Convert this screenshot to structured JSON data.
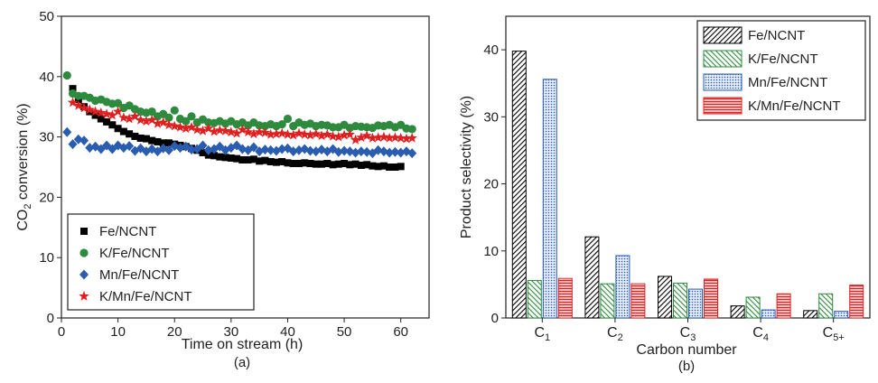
{
  "chart_data": [
    {
      "type": "scatter",
      "panel_label": "(a)",
      "xlabel": "Time on stream (h)",
      "ylabel": {
        "main": "CO",
        "sub": "2",
        "rest": " conversion (%)"
      },
      "xlim": [
        0,
        65
      ],
      "ylim": [
        0,
        50
      ],
      "xticks": [
        "0",
        "10",
        "20",
        "30",
        "40",
        "50",
        "60"
      ],
      "yticks": [
        "0",
        "10",
        "20",
        "30",
        "40",
        "50"
      ],
      "legend_position": "bottom-left",
      "series": [
        {
          "name": "Fe/NCNT",
          "marker": "square",
          "color": "#000000",
          "points": [
            [
              2,
              38.0
            ],
            [
              3,
              36.2
            ],
            [
              4,
              35.0
            ],
            [
              5,
              34.2
            ],
            [
              6,
              33.6
            ],
            [
              7,
              33.0
            ],
            [
              8,
              32.5
            ],
            [
              9,
              32.0
            ],
            [
              10,
              31.4
            ],
            [
              11,
              30.9
            ],
            [
              12,
              30.5
            ],
            [
              13,
              30.1
            ],
            [
              14,
              29.8
            ],
            [
              15,
              29.7
            ],
            [
              16,
              29.4
            ],
            [
              17,
              29.2
            ],
            [
              18,
              29.0
            ],
            [
              19,
              29.0
            ],
            [
              20,
              28.8
            ],
            [
              21,
              28.6
            ],
            [
              22,
              28.4
            ],
            [
              23,
              28.1
            ],
            [
              24,
              27.8
            ],
            [
              25,
              27.4
            ],
            [
              26,
              27.0
            ],
            [
              27,
              26.9
            ],
            [
              28,
              26.7
            ],
            [
              29,
              26.6
            ],
            [
              30,
              26.5
            ],
            [
              31,
              26.4
            ],
            [
              32,
              26.2
            ],
            [
              33,
              26.2
            ],
            [
              34,
              26.3
            ],
            [
              35,
              26.0
            ],
            [
              36,
              26.1
            ],
            [
              37,
              25.9
            ],
            [
              38,
              25.8
            ],
            [
              39,
              25.9
            ],
            [
              40,
              25.7
            ],
            [
              41,
              25.6
            ],
            [
              42,
              25.6
            ],
            [
              43,
              25.7
            ],
            [
              44,
              25.6
            ],
            [
              45,
              25.5
            ],
            [
              46,
              25.5
            ],
            [
              47,
              25.6
            ],
            [
              48,
              25.4
            ],
            [
              49,
              25.5
            ],
            [
              50,
              25.6
            ],
            [
              51,
              25.4
            ],
            [
              52,
              25.5
            ],
            [
              53,
              25.3
            ],
            [
              54,
              25.4
            ],
            [
              55,
              25.2
            ],
            [
              56,
              25.1
            ],
            [
              57,
              25.2
            ],
            [
              58,
              25.0
            ],
            [
              59,
              25.0
            ],
            [
              60,
              25.1
            ]
          ]
        },
        {
          "name": "K/Fe/NCNT",
          "marker": "circle",
          "color": "#2e8b3e",
          "points": [
            [
              1,
              40.2
            ],
            [
              2,
              37.2
            ],
            [
              3,
              36.8
            ],
            [
              4,
              36.8
            ],
            [
              5,
              36.5
            ],
            [
              6,
              36.0
            ],
            [
              7,
              36.2
            ],
            [
              8,
              35.8
            ],
            [
              9,
              35.5
            ],
            [
              10,
              35.6
            ],
            [
              11,
              34.8
            ],
            [
              12,
              35.2
            ],
            [
              13,
              34.6
            ],
            [
              14,
              34.2
            ],
            [
              15,
              34.0
            ],
            [
              16,
              34.2
            ],
            [
              17,
              33.4
            ],
            [
              18,
              33.8
            ],
            [
              19,
              33.2
            ],
            [
              20,
              34.4
            ],
            [
              21,
              33.0
            ],
            [
              22,
              32.6
            ],
            [
              23,
              33.4
            ],
            [
              24,
              32.4
            ],
            [
              25,
              32.9
            ],
            [
              26,
              32.4
            ],
            [
              27,
              32.3
            ],
            [
              28,
              32.6
            ],
            [
              29,
              32.2
            ],
            [
              30,
              32.6
            ],
            [
              31,
              32.1
            ],
            [
              32,
              32.4
            ],
            [
              33,
              31.9
            ],
            [
              34,
              32.4
            ],
            [
              35,
              31.9
            ],
            [
              36,
              31.8
            ],
            [
              37,
              32.1
            ],
            [
              38,
              31.8
            ],
            [
              39,
              32.1
            ],
            [
              40,
              33.0
            ],
            [
              41,
              31.8
            ],
            [
              42,
              32.4
            ],
            [
              43,
              32.0
            ],
            [
              44,
              32.2
            ],
            [
              45,
              31.8
            ],
            [
              46,
              32.0
            ],
            [
              47,
              31.9
            ],
            [
              48,
              31.6
            ],
            [
              49,
              31.6
            ],
            [
              50,
              32.0
            ],
            [
              51,
              31.5
            ],
            [
              52,
              31.8
            ],
            [
              53,
              31.7
            ],
            [
              54,
              31.6
            ],
            [
              55,
              31.5
            ],
            [
              56,
              31.9
            ],
            [
              57,
              31.8
            ],
            [
              58,
              32.0
            ],
            [
              59,
              31.6
            ],
            [
              60,
              32.0
            ],
            [
              61,
              31.4
            ],
            [
              62,
              31.3
            ]
          ]
        },
        {
          "name": "Mn/Fe/NCNT",
          "marker": "diamond",
          "color": "#2a5db0",
          "points": [
            [
              1,
              30.8
            ],
            [
              2,
              28.8
            ],
            [
              3,
              29.6
            ],
            [
              4,
              29.4
            ],
            [
              5,
              28.2
            ],
            [
              6,
              28.4
            ],
            [
              7,
              28.0
            ],
            [
              8,
              28.6
            ],
            [
              9,
              28.0
            ],
            [
              10,
              28.6
            ],
            [
              11,
              28.2
            ],
            [
              12,
              28.5
            ],
            [
              13,
              27.7
            ],
            [
              14,
              28.1
            ],
            [
              15,
              27.6
            ],
            [
              16,
              28.0
            ],
            [
              17,
              27.6
            ],
            [
              18,
              28.1
            ],
            [
              19,
              27.8
            ],
            [
              20,
              28.5
            ],
            [
              21,
              28.2
            ],
            [
              22,
              28.4
            ],
            [
              23,
              27.9
            ],
            [
              24,
              28.0
            ],
            [
              25,
              28.6
            ],
            [
              26,
              27.8
            ],
            [
              27,
              28.0
            ],
            [
              28,
              28.4
            ],
            [
              29,
              27.8
            ],
            [
              30,
              28.2
            ],
            [
              31,
              28.6
            ],
            [
              32,
              28.0
            ],
            [
              33,
              27.8
            ],
            [
              34,
              28.3
            ],
            [
              35,
              27.6
            ],
            [
              36,
              27.9
            ],
            [
              37,
              27.8
            ],
            [
              38,
              27.7
            ],
            [
              39,
              28.0
            ],
            [
              40,
              28.1
            ],
            [
              41,
              27.6
            ],
            [
              42,
              27.8
            ],
            [
              43,
              28.0
            ],
            [
              44,
              27.7
            ],
            [
              45,
              27.6
            ],
            [
              46,
              27.9
            ],
            [
              47,
              27.6
            ],
            [
              48,
              28.0
            ],
            [
              49,
              27.5
            ],
            [
              50,
              27.7
            ],
            [
              51,
              27.6
            ],
            [
              52,
              27.4
            ],
            [
              53,
              27.6
            ],
            [
              54,
              27.5
            ],
            [
              55,
              27.3
            ],
            [
              56,
              27.8
            ],
            [
              57,
              27.6
            ],
            [
              58,
              27.4
            ],
            [
              59,
              27.5
            ],
            [
              60,
              27.4
            ],
            [
              61,
              27.6
            ],
            [
              62,
              27.3
            ]
          ]
        },
        {
          "name": "K/Mn/Fe/NCNT",
          "marker": "star",
          "color": "#e02020",
          "points": [
            [
              2,
              35.7
            ],
            [
              3,
              35.2
            ],
            [
              4,
              34.8
            ],
            [
              5,
              34.5
            ],
            [
              6,
              34.2
            ],
            [
              7,
              34.0
            ],
            [
              8,
              33.8
            ],
            [
              9,
              33.6
            ],
            [
              10,
              34.2
            ],
            [
              11,
              33.2
            ],
            [
              12,
              33.0
            ],
            [
              13,
              33.4
            ],
            [
              14,
              32.8
            ],
            [
              15,
              32.6
            ],
            [
              16,
              32.8
            ],
            [
              17,
              32.2
            ],
            [
              18,
              32.4
            ],
            [
              19,
              32.0
            ],
            [
              20,
              31.8
            ],
            [
              21,
              31.6
            ],
            [
              22,
              31.4
            ],
            [
              23,
              31.6
            ],
            [
              24,
              31.2
            ],
            [
              25,
              31.0
            ],
            [
              26,
              31.4
            ],
            [
              27,
              30.9
            ],
            [
              28,
              31.1
            ],
            [
              29,
              31.0
            ],
            [
              30,
              30.8
            ],
            [
              31,
              30.6
            ],
            [
              32,
              31.2
            ],
            [
              33,
              30.8
            ],
            [
              34,
              30.5
            ],
            [
              35,
              30.8
            ],
            [
              36,
              30.7
            ],
            [
              37,
              30.4
            ],
            [
              38,
              30.5
            ],
            [
              39,
              30.6
            ],
            [
              40,
              30.4
            ],
            [
              41,
              30.3
            ],
            [
              42,
              30.6
            ],
            [
              43,
              30.4
            ],
            [
              44,
              30.3
            ],
            [
              45,
              30.5
            ],
            [
              46,
              30.2
            ],
            [
              47,
              30.4
            ],
            [
              48,
              30.1
            ],
            [
              49,
              30.0
            ],
            [
              50,
              30.3
            ],
            [
              51,
              30.4
            ],
            [
              52,
              29.5
            ],
            [
              53,
              29.9
            ],
            [
              54,
              30.2
            ],
            [
              55,
              29.8
            ],
            [
              56,
              29.9
            ],
            [
              57,
              30.0
            ],
            [
              58,
              29.8
            ],
            [
              59,
              29.9
            ],
            [
              60,
              29.8
            ],
            [
              61,
              29.7
            ],
            [
              62,
              29.8
            ]
          ]
        }
      ]
    },
    {
      "type": "bar",
      "panel_label": "(b)",
      "xlabel": "Carbon number",
      "ylabel": "Product selectivity (%)",
      "ylim": [
        0,
        45
      ],
      "yticks": [
        "0",
        "10",
        "20",
        "30",
        "40"
      ],
      "categories": [
        {
          "main": "C",
          "sub": "1"
        },
        {
          "main": "C",
          "sub": "2"
        },
        {
          "main": "C",
          "sub": "3"
        },
        {
          "main": "C",
          "sub": "4"
        },
        {
          "main": "C",
          "sub": "5+"
        }
      ],
      "legend_position": "top-right",
      "series": [
        {
          "name": "Fe/NCNT",
          "pattern": "diagonal-hatch",
          "color": "#000000",
          "values": [
            39.8,
            12.1,
            6.2,
            1.8,
            1.1
          ]
        },
        {
          "name": "K/Fe/NCNT",
          "pattern": "diagonal-hatch",
          "color": "#2e8b3e",
          "values": [
            5.6,
            5.1,
            5.2,
            3.1,
            3.6
          ]
        },
        {
          "name": "Mn/Fe/NCNT",
          "pattern": "crosshatch",
          "color": "#2a5db0",
          "values": [
            35.6,
            9.3,
            4.3,
            1.2,
            1.0
          ]
        },
        {
          "name": "K/Mn/Fe/NCNT",
          "pattern": "horizontal-lines",
          "color": "#e02020",
          "values": [
            5.9,
            5.1,
            5.8,
            3.6,
            4.9
          ]
        }
      ]
    }
  ]
}
